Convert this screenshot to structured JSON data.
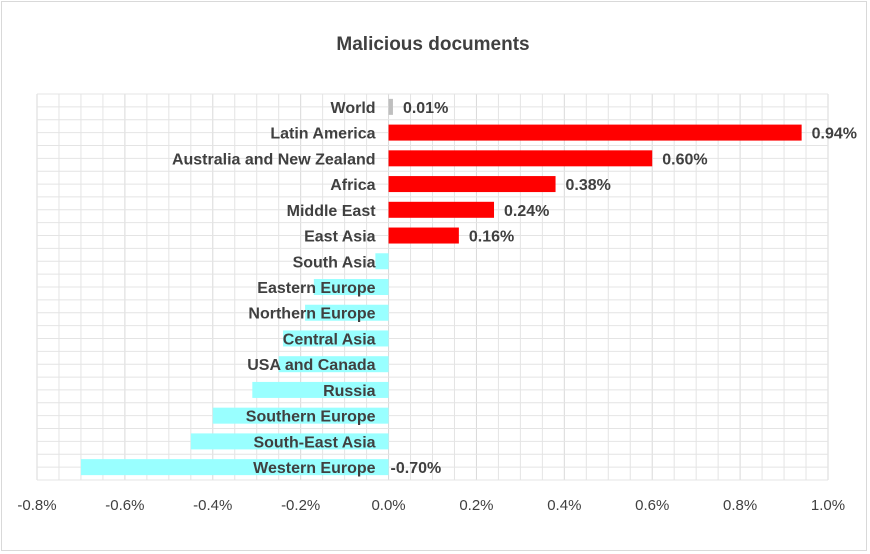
{
  "chart_data": {
    "type": "bar",
    "orientation": "horizontal",
    "title": "Malicious documents",
    "xlabel": "",
    "ylabel": "",
    "xlim": [
      -0.8,
      1.0
    ],
    "x_ticks": [
      "-0.8%",
      "-0.6%",
      "-0.4%",
      "-0.2%",
      "0.0%",
      "0.2%",
      "0.4%",
      "0.6%",
      "0.8%",
      "1.0%"
    ],
    "grid": true,
    "legend": "none",
    "categories": [
      "World",
      "Latin America",
      "Australia and New Zealand",
      "Africa",
      "Middle East",
      "East Asia",
      "South Asia",
      "Eastern Europe",
      "Northern Europe",
      "Central Asia",
      "USA and Canada",
      "Russia",
      "Southern Europe",
      "South-East Asia",
      "Western Europe"
    ],
    "values": [
      0.01,
      0.94,
      0.6,
      0.38,
      0.24,
      0.16,
      -0.03,
      -0.17,
      -0.19,
      -0.24,
      -0.25,
      -0.31,
      -0.4,
      -0.45,
      -0.7
    ],
    "data_labels": [
      "0.01%",
      "0.94%",
      "0.60%",
      "0.38%",
      "0.24%",
      "0.16%",
      "",
      "",
      "",
      "",
      "",
      "",
      "",
      "",
      "-0.70%"
    ],
    "colors": {
      "world": "#bfbfbf",
      "positive": "#ff0000",
      "negative": "#99ffff",
      "grid": "#e4e4e4",
      "text": "#404040"
    }
  }
}
